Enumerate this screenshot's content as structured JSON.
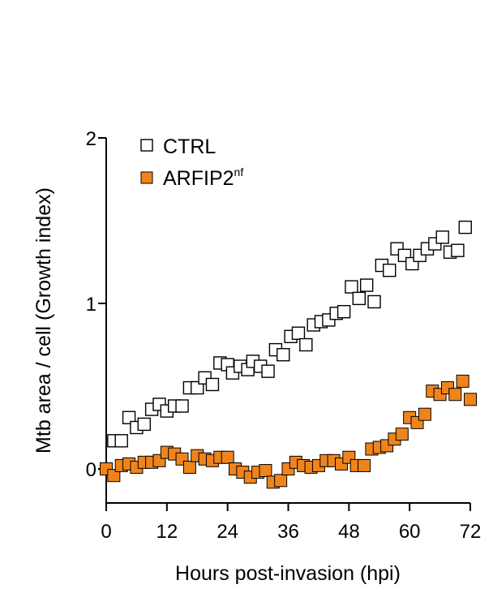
{
  "chart_data": {
    "type": "scatter",
    "xlabel": "Hours post-invasion (hpi)",
    "ylabel": "Mtb area / cell (Growth index)",
    "xlim": [
      0,
      72
    ],
    "ylim": [
      -0.2,
      2
    ],
    "xticks": [
      "0",
      "12",
      "24",
      "36",
      "48",
      "60",
      "72"
    ],
    "yticks": [
      "0",
      "1",
      "2"
    ],
    "grid": false,
    "legend_position": "top-left",
    "legend": [
      {
        "base": "CTRL",
        "sup": ""
      },
      {
        "base": "ARFIP2",
        "sup": "nf"
      }
    ],
    "series": [
      {
        "name": "CTRL",
        "marker": "hollow-square",
        "color": "#000000",
        "fill": "#ffffff",
        "points": [
          [
            1.5,
            0.17
          ],
          [
            3,
            0.17
          ],
          [
            4.5,
            0.31
          ],
          [
            6,
            0.25
          ],
          [
            7.5,
            0.27
          ],
          [
            9,
            0.36
          ],
          [
            10.5,
            0.39
          ],
          [
            12,
            0.35
          ],
          [
            13.5,
            0.38
          ],
          [
            15,
            0.38
          ],
          [
            16.5,
            0.49
          ],
          [
            18,
            0.49
          ],
          [
            19.5,
            0.55
          ],
          [
            21,
            0.51
          ],
          [
            22.5,
            0.64
          ],
          [
            24,
            0.63
          ],
          [
            25,
            0.58
          ],
          [
            26.5,
            0.62
          ],
          [
            28,
            0.6
          ],
          [
            29,
            0.65
          ],
          [
            30.5,
            0.62
          ],
          [
            32,
            0.59
          ],
          [
            33.5,
            0.72
          ],
          [
            35,
            0.69
          ],
          [
            36.5,
            0.8
          ],
          [
            38,
            0.82
          ],
          [
            39.5,
            0.75
          ],
          [
            41,
            0.87
          ],
          [
            42.5,
            0.89
          ],
          [
            44,
            0.9
          ],
          [
            45.5,
            0.94
          ],
          [
            47,
            0.95
          ],
          [
            48.5,
            1.1
          ],
          [
            50,
            1.03
          ],
          [
            51.5,
            1.11
          ],
          [
            53,
            1.01
          ],
          [
            54.5,
            1.23
          ],
          [
            56,
            1.2
          ],
          [
            57.5,
            1.33
          ],
          [
            59,
            1.29
          ],
          [
            60.5,
            1.24
          ],
          [
            62,
            1.29
          ],
          [
            63.5,
            1.33
          ],
          [
            65,
            1.36
          ],
          [
            66.5,
            1.4
          ],
          [
            68,
            1.31
          ],
          [
            69.5,
            1.32
          ],
          [
            71,
            1.46
          ]
        ]
      },
      {
        "name": "ARFIP2nf",
        "marker": "filled-square",
        "color": "#000000",
        "fill": "#f0841c",
        "points": [
          [
            0,
            0.0
          ],
          [
            1.5,
            -0.04
          ],
          [
            3,
            0.02
          ],
          [
            4.5,
            0.03
          ],
          [
            6,
            0.01
          ],
          [
            7.5,
            0.04
          ],
          [
            9,
            0.04
          ],
          [
            10.5,
            0.05
          ],
          [
            12,
            0.1
          ],
          [
            13.5,
            0.09
          ],
          [
            15,
            0.06
          ],
          [
            16.5,
            0.01
          ],
          [
            18,
            0.08
          ],
          [
            19.5,
            0.06
          ],
          [
            21,
            0.05
          ],
          [
            22.5,
            0.07
          ],
          [
            24,
            0.07
          ],
          [
            25.5,
            0.0
          ],
          [
            27,
            -0.02
          ],
          [
            28.5,
            -0.05
          ],
          [
            30,
            -0.02
          ],
          [
            31.5,
            -0.01
          ],
          [
            33,
            -0.08
          ],
          [
            34.5,
            -0.07
          ],
          [
            36,
            0.0
          ],
          [
            37.5,
            0.04
          ],
          [
            39,
            0.02
          ],
          [
            40.5,
            0.01
          ],
          [
            42,
            0.02
          ],
          [
            43.5,
            0.05
          ],
          [
            45,
            0.05
          ],
          [
            46.5,
            0.03
          ],
          [
            48,
            0.07
          ],
          [
            49.5,
            0.02
          ],
          [
            51,
            0.02
          ],
          [
            52.5,
            0.12
          ],
          [
            54,
            0.13
          ],
          [
            55.5,
            0.14
          ],
          [
            57,
            0.18
          ],
          [
            58.5,
            0.21
          ],
          [
            60,
            0.31
          ],
          [
            61.5,
            0.28
          ],
          [
            63,
            0.33
          ],
          [
            64.5,
            0.47
          ],
          [
            66,
            0.45
          ],
          [
            67.5,
            0.49
          ],
          [
            69,
            0.45
          ],
          [
            70.5,
            0.53
          ],
          [
            72,
            0.42
          ]
        ]
      }
    ]
  }
}
